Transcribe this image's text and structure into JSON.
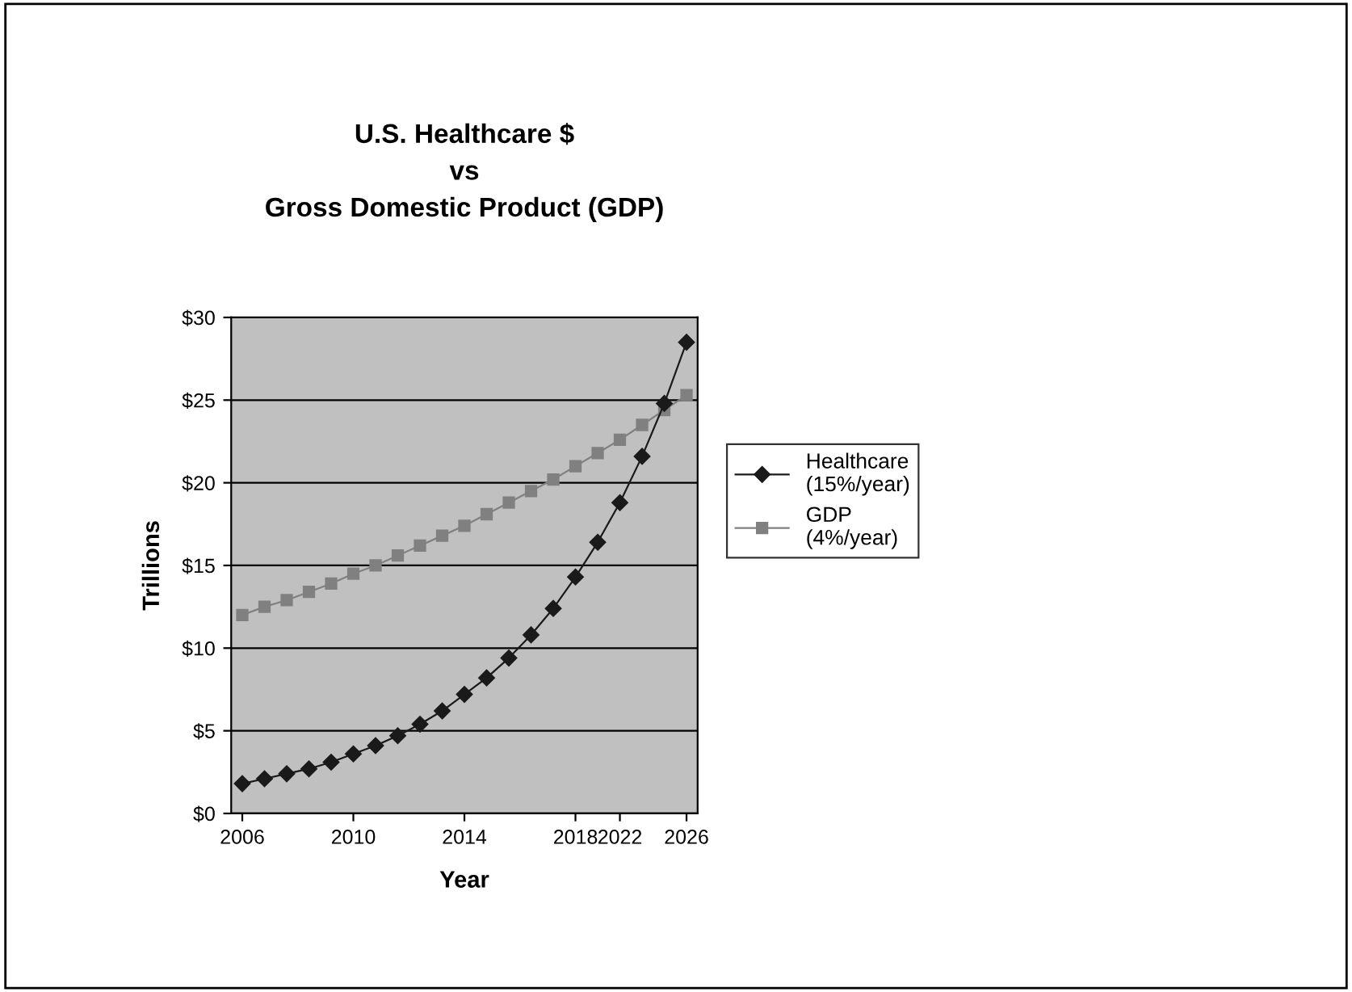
{
  "chart_data": {
    "type": "line",
    "title": "U.S. Healthcare $\nvs\nGross Domestic Product (GDP)",
    "xlabel": "Year",
    "ylabel": "Trillions",
    "categories": [
      "2006",
      null,
      null,
      null,
      null,
      "2010",
      null,
      null,
      null,
      null,
      "2014",
      null,
      null,
      null,
      null,
      "2018",
      null,
      "2022",
      null,
      null,
      "2026"
    ],
    "series": [
      {
        "name": "Healthcare\n(15%/year)",
        "color": "#1a1a1a",
        "marker": "diamond",
        "values": [
          1.8,
          2.1,
          2.4,
          2.7,
          3.1,
          3.6,
          4.1,
          4.7,
          5.4,
          6.2,
          7.2,
          8.2,
          9.4,
          10.8,
          12.4,
          14.3,
          16.4,
          18.8,
          21.6,
          24.8,
          28.5
        ]
      },
      {
        "name": "GDP\n(4%/year)",
        "color": "#808080",
        "marker": "square",
        "values": [
          12.0,
          12.5,
          12.9,
          13.4,
          13.9,
          14.5,
          15.0,
          15.6,
          16.2,
          16.8,
          17.4,
          18.1,
          18.8,
          19.5,
          20.2,
          21.0,
          21.8,
          22.6,
          23.5,
          24.4,
          25.3
        ]
      }
    ],
    "ylim": [
      0,
      30
    ],
    "yticks": [
      {
        "value": 0,
        "label": "$0"
      },
      {
        "value": 5,
        "label": "$5"
      },
      {
        "value": 10,
        "label": "$10"
      },
      {
        "value": 15,
        "label": "$15"
      },
      {
        "value": 20,
        "label": "$20"
      },
      {
        "value": 25,
        "label": "$25"
      },
      {
        "value": 30,
        "label": "$30"
      }
    ],
    "grid": "y",
    "legend": "right",
    "line_style": "solid"
  }
}
